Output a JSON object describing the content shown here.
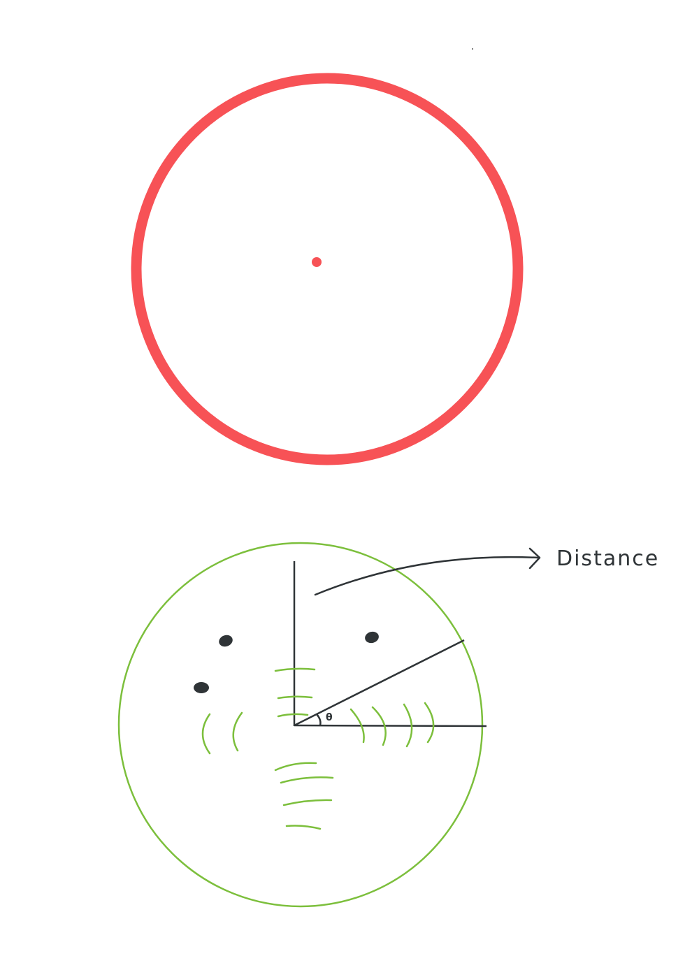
{
  "colors": {
    "top_circle": "#f75256",
    "bottom_circle": "#7cbf3c",
    "ink": "#2f3437"
  },
  "labels": {
    "distance": "Distance",
    "theta": "θ"
  },
  "icons": {
    "arrow": "arrow-right-icon"
  }
}
